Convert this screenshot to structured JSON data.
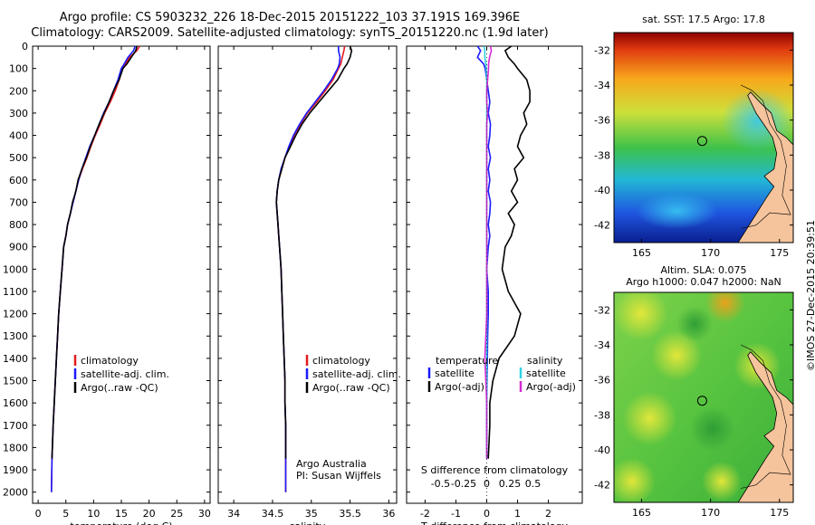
{
  "titles": {
    "line1": "Argo profile: CS 5903232_226 18-Dec-2015 20151222_103 37.191S 169.396E",
    "line2": "Climatology: CARS2009. Satellite-adjusted climatology: synTS_20151220.nc (1.9d later)"
  },
  "colors": {
    "climatology": "#e41a1c",
    "satellite": "#1a1aff",
    "argo": "#000000",
    "sal_satellite": "#2fd3e6",
    "sal_argo": "#d62ad6",
    "land": "#f5c49c"
  },
  "credit": "©IMOS 27-Dec-2015 20:39:51",
  "chart_data": [
    {
      "type": "line",
      "xlabel": "temperature (deg C)",
      "ylabel": "",
      "xlim": [
        -1,
        31
      ],
      "ylim": [
        2050,
        0
      ],
      "xticks": [
        "0",
        "5",
        "10",
        "15",
        "20",
        "25",
        "30"
      ],
      "yticks": [
        "0",
        "100",
        "200",
        "300",
        "400",
        "500",
        "600",
        "700",
        "800",
        "900",
        "1000",
        "1100",
        "1200",
        "1300",
        "1400",
        "1500",
        "1600",
        "1700",
        "1800",
        "1900",
        "2000"
      ],
      "legend": [
        "climatology",
        "satellite-adj. clim.",
        "Argo(..raw -QC)"
      ],
      "legend_position": "lower-center",
      "series": [
        {
          "name": "climatology",
          "x": [
            18.3,
            17.8,
            16.5,
            15.7,
            15.2,
            14.6,
            13.9,
            13.0,
            12.0,
            11.2,
            10.3,
            9.5,
            8.8,
            8.0,
            7.3,
            6.8,
            6.3,
            5.8,
            5.3,
            5.0,
            4.6,
            4.3,
            4.0,
            3.7,
            3.5,
            3.3,
            3.1,
            2.9,
            2.7,
            2.5,
            2.4
          ],
          "y": [
            0,
            20,
            50,
            80,
            100,
            150,
            200,
            250,
            300,
            350,
            400,
            450,
            500,
            550,
            600,
            650,
            700,
            750,
            800,
            850,
            900,
            1000,
            1100,
            1200,
            1300,
            1400,
            1500,
            1600,
            1700,
            1850,
            2000
          ]
        },
        {
          "name": "satellite-adj. clim.",
          "x": [
            17.5,
            17.2,
            16.2,
            15.5,
            15.0,
            14.4,
            13.6,
            12.8,
            11.8,
            11.0,
            10.2,
            9.3,
            8.6,
            7.9,
            7.3,
            6.8,
            6.3,
            5.8,
            5.3,
            5.0,
            4.6,
            4.3,
            4.0,
            3.7,
            3.5,
            3.3,
            3.1,
            2.9,
            2.7,
            2.5,
            2.4
          ],
          "y": [
            0,
            20,
            50,
            80,
            100,
            150,
            200,
            250,
            300,
            350,
            400,
            450,
            500,
            550,
            600,
            650,
            700,
            750,
            800,
            850,
            900,
            1000,
            1100,
            1200,
            1300,
            1400,
            1500,
            1600,
            1700,
            1850,
            2000
          ]
        },
        {
          "name": "Argo(..raw -QC)",
          "x": [
            17.8,
            17.6,
            16.8,
            16.0,
            15.3,
            14.6,
            13.6,
            12.8,
            11.9,
            11.0,
            10.2,
            9.4,
            8.7,
            7.9,
            7.2,
            6.8,
            6.2,
            5.8,
            5.3,
            5.0,
            4.6,
            4.3,
            4.0,
            3.7,
            3.5,
            3.3,
            3.1,
            2.9,
            2.7,
            2.5
          ],
          "y": [
            0,
            20,
            50,
            80,
            100,
            150,
            200,
            250,
            300,
            350,
            400,
            450,
            500,
            550,
            600,
            650,
            700,
            750,
            800,
            850,
            900,
            1000,
            1100,
            1200,
            1300,
            1400,
            1500,
            1600,
            1700,
            1850
          ]
        }
      ]
    },
    {
      "type": "line",
      "xlabel": "salinity",
      "ylabel": "",
      "xlim": [
        33.8,
        36.1
      ],
      "ylim": [
        2050,
        0
      ],
      "xticks": [
        "34",
        "34.5",
        "35",
        "35.5",
        "36"
      ],
      "legend": [
        "climatology",
        "satellite-adj. clim.",
        "Argo(..raw -QC)"
      ],
      "legend_position": "lower-center",
      "annotation": [
        "Argo Australia",
        "PI: Susan Wijffels"
      ],
      "series": [
        {
          "name": "climatology",
          "x": [
            35.43,
            35.42,
            35.4,
            35.38,
            35.35,
            35.28,
            35.18,
            35.07,
            34.95,
            34.86,
            34.78,
            34.72,
            34.66,
            34.62,
            34.58,
            34.56,
            34.55,
            34.56,
            34.57,
            34.58,
            34.59,
            34.61,
            34.62,
            34.63,
            34.64,
            34.65,
            34.66,
            34.66,
            34.67,
            34.67,
            34.67
          ],
          "y": [
            0,
            20,
            50,
            80,
            100,
            150,
            200,
            250,
            300,
            350,
            400,
            450,
            500,
            550,
            600,
            650,
            700,
            750,
            800,
            850,
            900,
            1000,
            1100,
            1200,
            1300,
            1400,
            1500,
            1600,
            1700,
            1850,
            2000
          ]
        },
        {
          "name": "satellite-adj. clim.",
          "x": [
            35.35,
            35.35,
            35.37,
            35.36,
            35.34,
            35.26,
            35.16,
            35.05,
            34.94,
            34.85,
            34.77,
            34.71,
            34.66,
            34.61,
            34.58,
            34.56,
            34.55,
            34.56,
            34.57,
            34.58,
            34.59,
            34.61,
            34.62,
            34.63,
            34.64,
            34.65,
            34.66,
            34.66,
            34.67,
            34.67,
            34.67
          ],
          "y": [
            0,
            20,
            50,
            80,
            100,
            150,
            200,
            250,
            300,
            350,
            400,
            450,
            500,
            550,
            600,
            650,
            700,
            750,
            800,
            850,
            900,
            1000,
            1100,
            1200,
            1300,
            1400,
            1500,
            1600,
            1700,
            1850,
            2000
          ]
        },
        {
          "name": "Argo(..raw -QC)",
          "x": [
            35.5,
            35.52,
            35.5,
            35.46,
            35.42,
            35.34,
            35.22,
            35.1,
            34.98,
            34.88,
            34.8,
            34.73,
            34.66,
            34.62,
            34.58,
            34.56,
            34.55,
            34.56,
            34.57,
            34.58,
            34.59,
            34.61,
            34.62,
            34.63,
            34.64,
            34.65,
            34.66,
            34.66,
            34.67,
            34.67
          ],
          "y": [
            0,
            20,
            50,
            80,
            100,
            150,
            200,
            250,
            300,
            350,
            400,
            450,
            500,
            550,
            600,
            650,
            700,
            750,
            800,
            850,
            900,
            1000,
            1100,
            1200,
            1300,
            1400,
            1500,
            1600,
            1700,
            1850
          ]
        }
      ]
    },
    {
      "type": "line",
      "xlabel": "T difference from climatology",
      "xlabel_top": "S difference from climatology",
      "ylabel": "",
      "xlim": [
        -2.6,
        3.1
      ],
      "ylim": [
        2050,
        0
      ],
      "xticks": [
        "-2",
        "-1",
        "0",
        "1",
        "2"
      ],
      "xticks_top": [
        "-0.5",
        "-0.25",
        "0",
        "0.25",
        "0.5"
      ],
      "legend": [
        "temperature",
        "satellite",
        "Argo(-adj)",
        "salinity",
        "satellite",
        "Argo(-adj)"
      ],
      "legend_position": "lower-center",
      "series": [
        {
          "name": "satellite",
          "x": [
            -0.3,
            -0.2,
            -0.3,
            -0.1,
            -0.05,
            0.0,
            0.05,
            0.1,
            0.05,
            0.12,
            0.1,
            0.05,
            0.12,
            0.05,
            0.1,
            0.05,
            0.12,
            0.1,
            0.05,
            0.1,
            0.05,
            0.0,
            0.05,
            0.05,
            0.03,
            0.02,
            0.01,
            0.0,
            0.0,
            0.0
          ],
          "y": [
            0,
            20,
            50,
            80,
            100,
            150,
            200,
            250,
            300,
            350,
            400,
            450,
            500,
            550,
            600,
            650,
            700,
            750,
            800,
            850,
            900,
            1000,
            1100,
            1200,
            1300,
            1400,
            1500,
            1600,
            1700,
            1850
          ]
        },
        {
          "name": "Argo(-adj)",
          "x": [
            0.8,
            0.6,
            0.7,
            0.9,
            1.0,
            1.3,
            1.4,
            1.4,
            1.2,
            1.3,
            1.1,
            1.0,
            1.2,
            0.9,
            1.0,
            0.8,
            1.0,
            0.7,
            0.9,
            0.8,
            0.6,
            0.5,
            0.7,
            1.1,
            0.9,
            0.4,
            0.2,
            0.1,
            0.1,
            0.05
          ],
          "y": [
            0,
            20,
            50,
            80,
            100,
            150,
            200,
            250,
            300,
            350,
            400,
            450,
            500,
            550,
            600,
            650,
            700,
            750,
            800,
            850,
            900,
            1000,
            1100,
            1200,
            1300,
            1400,
            1500,
            1600,
            1700,
            1850
          ]
        },
        {
          "name": "satellite",
          "x": [
            -0.03,
            -0.02,
            -0.02,
            -0.01,
            -0.005,
            0.0,
            0.0,
            0.0,
            0.0,
            0.0,
            0.0,
            0.0,
            0.0,
            0.0,
            0.0,
            0.0,
            0.0,
            0.0,
            0.0,
            0.0,
            0.0,
            0.0,
            0.0,
            0.0,
            0.0,
            0.0,
            0.0,
            0.0,
            0.0,
            0.0
          ],
          "y": [
            0,
            20,
            50,
            80,
            100,
            150,
            200,
            250,
            300,
            350,
            400,
            450,
            500,
            550,
            600,
            650,
            700,
            750,
            800,
            850,
            900,
            1000,
            1100,
            1200,
            1300,
            1400,
            1500,
            1600,
            1700,
            1850
          ]
        },
        {
          "name": "Argo(-adj)",
          "x": [
            0.04,
            0.05,
            0.03,
            0.02,
            0.02,
            0.01,
            0.0,
            0.0,
            0.01,
            0.0,
            0.0,
            0.0,
            0.0,
            0.0,
            0.0,
            0.0,
            0.0,
            0.0,
            0.0,
            0.0,
            0.0,
            0.0,
            0.0,
            0.0,
            -0.01,
            -0.02,
            -0.01,
            0.0,
            0.0,
            0.0
          ],
          "y": [
            0,
            20,
            50,
            80,
            100,
            150,
            200,
            250,
            300,
            350,
            400,
            450,
            500,
            550,
            600,
            650,
            700,
            750,
            800,
            850,
            900,
            1000,
            1100,
            1200,
            1300,
            1400,
            1500,
            1600,
            1700,
            1850
          ]
        }
      ]
    },
    {
      "type": "heatmap",
      "title": "sat. SST: 17.5 Argo: 17.8",
      "xlim": [
        163,
        176
      ],
      "ylim": [
        -43,
        -31
      ],
      "xticks": [
        "165",
        "170",
        "175"
      ],
      "yticks": [
        "-32",
        "-34",
        "-36",
        "-38",
        "-40",
        "-42"
      ],
      "marker": {
        "lon": 169.396,
        "lat": -37.191
      },
      "gradient": [
        "#8b0000",
        "#e03a10",
        "#f7a81b",
        "#cde03a",
        "#3dc24a",
        "#22b8d6",
        "#1f55e0",
        "#0a1f8f"
      ]
    },
    {
      "type": "heatmap",
      "title": "Altim. SLA: 0.075",
      "subtitle": "Argo h1000: 0.047 h2000: NaN",
      "xlim": [
        163,
        176
      ],
      "ylim": [
        -43,
        -31
      ],
      "xticks": [
        "165",
        "170",
        "175"
      ],
      "yticks": [
        "-32",
        "-34",
        "-36",
        "-38",
        "-40",
        "-42"
      ],
      "marker": {
        "lon": 169.396,
        "lat": -37.191
      },
      "gradient": [
        "#f0a01a",
        "#e0e030",
        "#a6e040",
        "#5cc840",
        "#2fa838"
      ]
    }
  ]
}
